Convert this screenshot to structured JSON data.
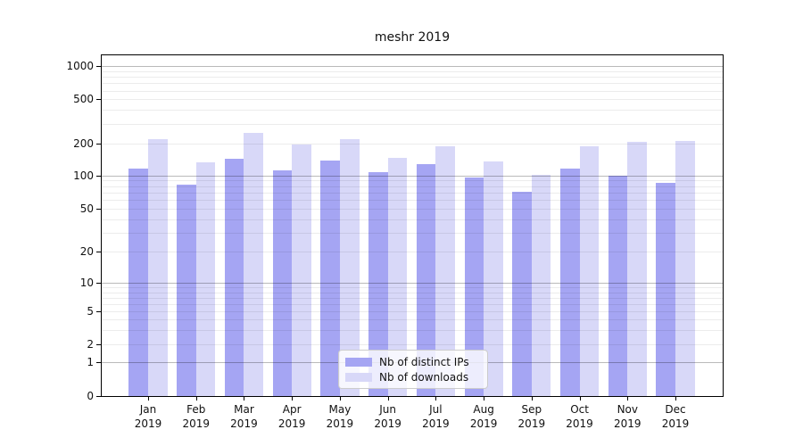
{
  "chart_data": {
    "type": "bar",
    "title": "meshr 2019",
    "categories": [
      "Jan 2019",
      "Feb 2019",
      "Mar 2019",
      "Apr 2019",
      "May 2019",
      "Jun 2019",
      "Jul 2019",
      "Aug 2019",
      "Sep 2019",
      "Oct 2019",
      "Nov 2019",
      "Dec 2019"
    ],
    "series": [
      {
        "name": "Nb of distinct IPs",
        "color": "#a5a5f3",
        "values": [
          117,
          83,
          143,
          112,
          140,
          108,
          127,
          96,
          71,
          117,
          100,
          85
        ]
      },
      {
        "name": "Nb of downloads",
        "color": "#d8d8f8",
        "values": [
          221,
          133,
          252,
          196,
          221,
          146,
          190,
          137,
          102,
          190,
          209,
          215
        ]
      }
    ],
    "xlabel": "",
    "ylabel": "",
    "y_axis": {
      "scale": "symlog",
      "tick_labels": [
        "0",
        "1",
        "2",
        "5",
        "10",
        "20",
        "50",
        "100",
        "200",
        "500",
        "1000"
      ],
      "ticks": [
        0,
        1,
        2,
        5,
        10,
        20,
        50,
        100,
        200,
        500,
        1000
      ]
    },
    "grid": "on",
    "legend": {
      "position": "bottom-center"
    },
    "colors": {
      "background": "#ffffff",
      "spine": "#000000",
      "text": "#111111"
    }
  }
}
